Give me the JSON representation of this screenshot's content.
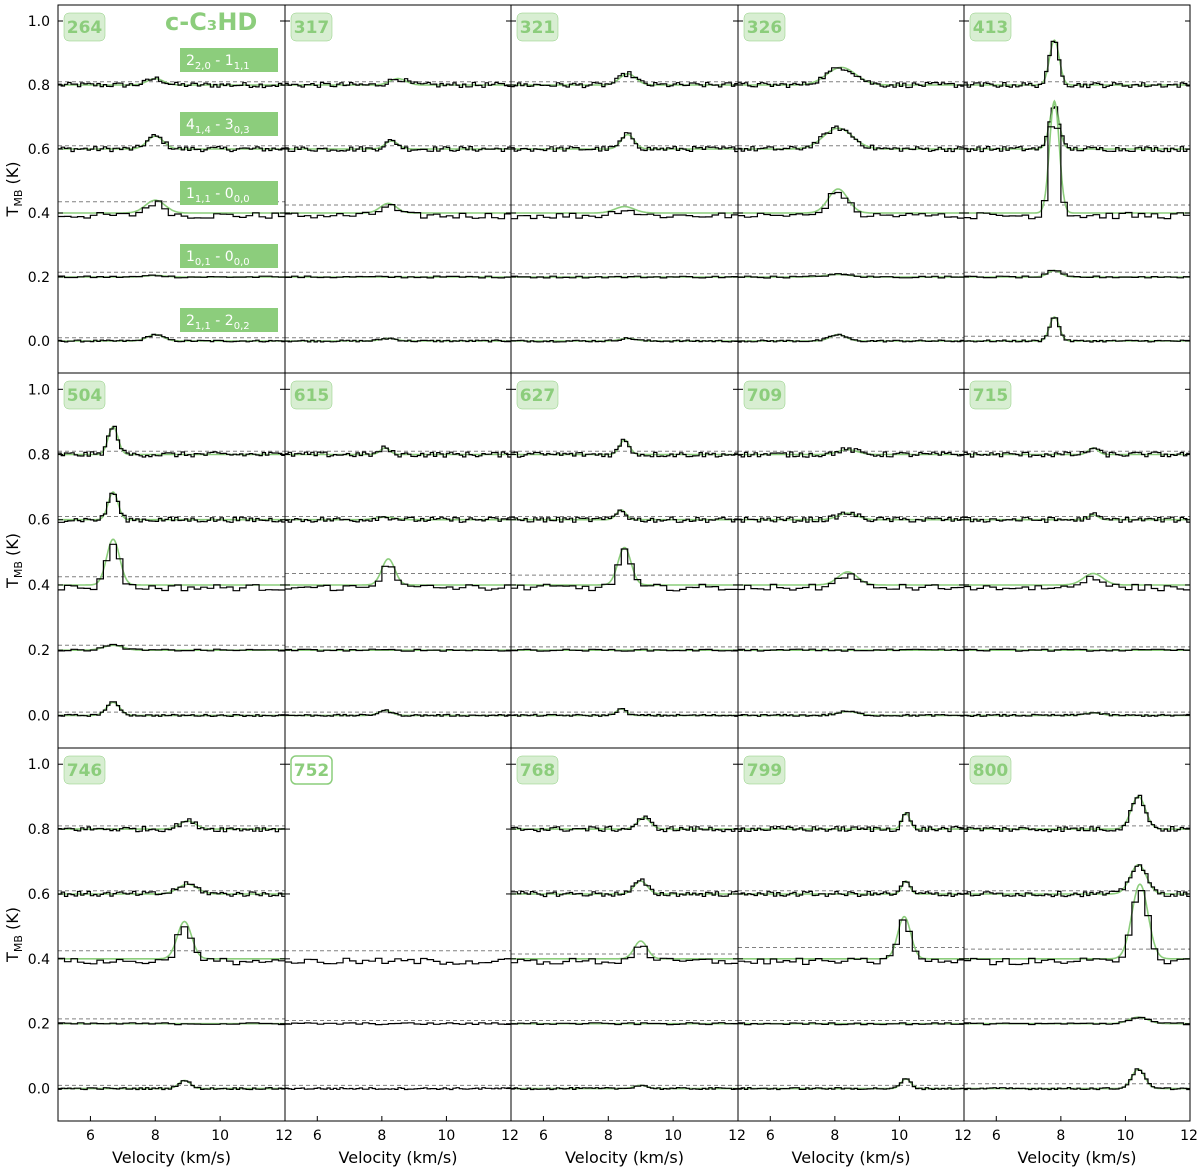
{
  "chart_data": {
    "type": "line",
    "species_label": "c-C₃HD",
    "xlabel": "Velocity (km/s)",
    "ylabel": "T",
    "ylabel_sub": "MB",
    "ylabel_unit": " (K)",
    "xlim": [
      5,
      12
    ],
    "ylim": [
      -0.1,
      1.05
    ],
    "xticks": [
      6,
      8,
      10,
      12
    ],
    "yticks": [
      0.0,
      0.2,
      0.4,
      0.6,
      0.8,
      1.0
    ],
    "y_tick_labels": [
      "0.0",
      "0.2",
      "0.4",
      "0.6",
      "0.8",
      "1.0"
    ],
    "x_tick_labels": [
      "6",
      "8",
      "10",
      "12"
    ],
    "colors": {
      "observed": "#000000",
      "model": "#8ccd7c",
      "threshold": "#808080",
      "badge_fill": "#d8eed2",
      "badge_text": "#8ccd7c"
    },
    "transitions": [
      {
        "base": "2",
        "sub": "2,0",
        "sep": " - ",
        "base2": "1",
        "sub2": "1,1",
        "offset": 0.8
      },
      {
        "base": "4",
        "sub": "1,4",
        "sep": " - ",
        "base2": "3",
        "sub2": "0,3",
        "offset": 0.6
      },
      {
        "base": "1",
        "sub": "1,1",
        "sep": " - ",
        "base2": "0",
        "sub2": "0,0",
        "offset": 0.4
      },
      {
        "base": "1",
        "sub": "0,1",
        "sep": " - ",
        "base2": "0",
        "sub2": "0,0",
        "offset": 0.2
      },
      {
        "base": "2",
        "sub": "1,1",
        "sep": " - ",
        "base2": "2",
        "sub2": "0,2",
        "offset": 0.0
      }
    ],
    "panels": [
      {
        "id": "264",
        "filled": true,
        "lines": [
          {
            "peak": 0.02,
            "vel": 8.0,
            "w": 0.25,
            "thr": 0.81,
            "off": 0.8
          },
          {
            "peak": 0.04,
            "vel": 8.0,
            "w": 0.25,
            "thr": 0.61,
            "off": 0.6
          },
          {
            "peak": 0.04,
            "vel": 8.0,
            "w": 0.3,
            "thr": 0.435,
            "off": 0.4
          },
          {
            "peak": 0.005,
            "vel": 8.0,
            "w": 0.3,
            "thr": 0.215,
            "off": 0.2
          },
          {
            "peak": 0.02,
            "vel": 8.0,
            "w": 0.25,
            "thr": 0.01,
            "off": 0.0
          }
        ]
      },
      {
        "id": "317",
        "filled": true,
        "lines": [
          {
            "peak": 0.02,
            "vel": 8.5,
            "w": 0.25,
            "thr": 0.81,
            "off": 0.8
          },
          {
            "peak": 0.025,
            "vel": 8.3,
            "w": 0.2,
            "thr": 0.61,
            "off": 0.6
          },
          {
            "peak": 0.03,
            "vel": 8.2,
            "w": 0.25,
            "thr": 0.425,
            "off": 0.4
          },
          {
            "peak": 0.0,
            "vel": 8.2,
            "w": 0.3,
            "thr": 0.215,
            "off": 0.2
          },
          {
            "peak": 0.008,
            "vel": 8.2,
            "w": 0.25,
            "thr": 0.01,
            "off": 0.0
          }
        ]
      },
      {
        "id": "321",
        "filled": true,
        "lines": [
          {
            "peak": 0.035,
            "vel": 8.6,
            "w": 0.25,
            "thr": 0.81,
            "off": 0.8
          },
          {
            "peak": 0.045,
            "vel": 8.6,
            "w": 0.2,
            "thr": 0.61,
            "off": 0.6
          },
          {
            "peak": 0.02,
            "vel": 8.5,
            "w": 0.3,
            "thr": 0.425,
            "off": 0.4
          },
          {
            "peak": 0.0,
            "vel": 8.5,
            "w": 0.3,
            "thr": 0.21,
            "off": 0.2
          },
          {
            "peak": 0.008,
            "vel": 8.6,
            "w": 0.25,
            "thr": 0.01,
            "off": 0.0
          }
        ]
      },
      {
        "id": "326",
        "filled": true,
        "lines": [
          {
            "peak": 0.055,
            "vel": 8.2,
            "w": 0.45,
            "thr": 0.81,
            "off": 0.8
          },
          {
            "peak": 0.065,
            "vel": 8.1,
            "w": 0.45,
            "thr": 0.61,
            "off": 0.6
          },
          {
            "peak": 0.075,
            "vel": 8.1,
            "w": 0.3,
            "thr": 0.425,
            "off": 0.4
          },
          {
            "peak": 0.008,
            "vel": 8.1,
            "w": 0.4,
            "thr": 0.21,
            "off": 0.2
          },
          {
            "peak": 0.02,
            "vel": 8.1,
            "w": 0.25,
            "thr": 0.01,
            "off": 0.0
          }
        ]
      },
      {
        "id": "413",
        "filled": true,
        "lines": [
          {
            "peak": 0.14,
            "vel": 7.8,
            "w": 0.15,
            "thr": 0.81,
            "off": 0.8
          },
          {
            "peak": 0.14,
            "vel": 7.8,
            "w": 0.15,
            "thr": 0.61,
            "off": 0.6
          },
          {
            "peak": 0.35,
            "vel": 7.8,
            "w": 0.15,
            "thr": 0.425,
            "off": 0.4
          },
          {
            "peak": 0.02,
            "vel": 7.8,
            "w": 0.2,
            "thr": 0.215,
            "off": 0.2
          },
          {
            "peak": 0.075,
            "vel": 7.8,
            "w": 0.15,
            "thr": 0.015,
            "off": 0.0
          }
        ]
      },
      {
        "id": "504",
        "filled": true,
        "lines": [
          {
            "peak": 0.085,
            "vel": 6.7,
            "w": 0.15,
            "thr": 0.81,
            "off": 0.8
          },
          {
            "peak": 0.085,
            "vel": 6.7,
            "w": 0.15,
            "thr": 0.61,
            "off": 0.6
          },
          {
            "peak": 0.14,
            "vel": 6.7,
            "w": 0.2,
            "thr": 0.425,
            "off": 0.4
          },
          {
            "peak": 0.015,
            "vel": 6.7,
            "w": 0.3,
            "thr": 0.215,
            "off": 0.2
          },
          {
            "peak": 0.04,
            "vel": 6.7,
            "w": 0.2,
            "thr": 0.01,
            "off": 0.0
          }
        ]
      },
      {
        "id": "615",
        "filled": true,
        "lines": [
          {
            "peak": 0.02,
            "vel": 8.1,
            "w": 0.15,
            "thr": 0.81,
            "off": 0.8
          },
          {
            "peak": 0.008,
            "vel": 8.1,
            "w": 0.3,
            "thr": 0.61,
            "off": 0.6
          },
          {
            "peak": 0.08,
            "vel": 8.2,
            "w": 0.2,
            "thr": 0.435,
            "off": 0.4
          },
          {
            "peak": 0.0,
            "vel": 8.2,
            "w": 0.3,
            "thr": 0.21,
            "off": 0.2
          },
          {
            "peak": 0.015,
            "vel": 8.1,
            "w": 0.2,
            "thr": 0.01,
            "off": 0.0
          }
        ]
      },
      {
        "id": "627",
        "filled": true,
        "lines": [
          {
            "peak": 0.045,
            "vel": 8.5,
            "w": 0.15,
            "thr": 0.81,
            "off": 0.8
          },
          {
            "peak": 0.03,
            "vel": 8.4,
            "w": 0.15,
            "thr": 0.61,
            "off": 0.6
          },
          {
            "peak": 0.115,
            "vel": 8.5,
            "w": 0.2,
            "thr": 0.43,
            "off": 0.4
          },
          {
            "peak": 0.0,
            "vel": 8.5,
            "w": 0.3,
            "thr": 0.21,
            "off": 0.2
          },
          {
            "peak": 0.02,
            "vel": 8.4,
            "w": 0.15,
            "thr": 0.01,
            "off": 0.0
          }
        ]
      },
      {
        "id": "709",
        "filled": true,
        "lines": [
          {
            "peak": 0.015,
            "vel": 8.4,
            "w": 0.3,
            "thr": 0.81,
            "off": 0.8
          },
          {
            "peak": 0.02,
            "vel": 8.4,
            "w": 0.3,
            "thr": 0.61,
            "off": 0.6
          },
          {
            "peak": 0.04,
            "vel": 8.4,
            "w": 0.3,
            "thr": 0.435,
            "off": 0.4
          },
          {
            "peak": 0.0,
            "vel": 8.4,
            "w": 0.3,
            "thr": 0.21,
            "off": 0.2
          },
          {
            "peak": 0.012,
            "vel": 8.4,
            "w": 0.3,
            "thr": 0.01,
            "off": 0.0
          }
        ]
      },
      {
        "id": "715",
        "filled": true,
        "lines": [
          {
            "peak": 0.02,
            "vel": 9.0,
            "w": 0.15,
            "thr": 0.81,
            "off": 0.8
          },
          {
            "peak": 0.015,
            "vel": 9.0,
            "w": 0.15,
            "thr": 0.61,
            "off": 0.6
          },
          {
            "peak": 0.035,
            "vel": 9.0,
            "w": 0.3,
            "thr": 0.435,
            "off": 0.4
          },
          {
            "peak": 0.0,
            "vel": 9.0,
            "w": 0.3,
            "thr": 0.21,
            "off": 0.2
          },
          {
            "peak": 0.008,
            "vel": 9.0,
            "w": 0.25,
            "thr": 0.01,
            "off": 0.0
          }
        ]
      },
      {
        "id": "746",
        "filled": true,
        "lines": [
          {
            "peak": 0.025,
            "vel": 9.0,
            "w": 0.25,
            "thr": 0.81,
            "off": 0.8
          },
          {
            "peak": 0.03,
            "vel": 9.0,
            "w": 0.3,
            "thr": 0.61,
            "off": 0.6
          },
          {
            "peak": 0.115,
            "vel": 8.9,
            "w": 0.22,
            "thr": 0.425,
            "off": 0.4
          },
          {
            "peak": 0.0,
            "vel": 9.0,
            "w": 0.3,
            "thr": 0.215,
            "off": 0.2
          },
          {
            "peak": 0.025,
            "vel": 8.9,
            "w": 0.18,
            "thr": 0.01,
            "off": 0.0
          }
        ]
      },
      {
        "id": "752",
        "filled": false,
        "lines": [
          {
            "peak": 0.0,
            "vel": 9.0,
            "w": 0.3,
            "thr": 0.425,
            "off": 0.4,
            "slot": 2
          },
          {
            "peak": 0.0,
            "vel": 9.0,
            "w": 0.3,
            "thr": 0.21,
            "off": 0.2,
            "slot": 3
          },
          {
            "peak": 0.0,
            "vel": 9.0,
            "w": 0.3,
            "thr": 0.01,
            "off": 0.0,
            "slot": 4
          }
        ]
      },
      {
        "id": "768",
        "filled": true,
        "lines": [
          {
            "peak": 0.035,
            "vel": 9.1,
            "w": 0.2,
            "thr": 0.81,
            "off": 0.8
          },
          {
            "peak": 0.04,
            "vel": 9.0,
            "w": 0.2,
            "thr": 0.61,
            "off": 0.6
          },
          {
            "peak": 0.055,
            "vel": 9.0,
            "w": 0.2,
            "thr": 0.415,
            "off": 0.4
          },
          {
            "peak": 0.0,
            "vel": 9.0,
            "w": 0.3,
            "thr": 0.21,
            "off": 0.2
          },
          {
            "peak": 0.01,
            "vel": 9.0,
            "w": 0.2,
            "thr": 0.01,
            "off": 0.0
          }
        ]
      },
      {
        "id": "799",
        "filled": true,
        "lines": [
          {
            "peak": 0.05,
            "vel": 10.2,
            "w": 0.12,
            "thr": 0.81,
            "off": 0.8
          },
          {
            "peak": 0.04,
            "vel": 10.2,
            "w": 0.12,
            "thr": 0.61,
            "off": 0.6
          },
          {
            "peak": 0.13,
            "vel": 10.15,
            "w": 0.2,
            "thr": 0.435,
            "off": 0.4
          },
          {
            "peak": 0.0,
            "vel": 10.2,
            "w": 0.3,
            "thr": 0.21,
            "off": 0.2
          },
          {
            "peak": 0.03,
            "vel": 10.2,
            "w": 0.15,
            "thr": 0.01,
            "off": 0.0
          }
        ]
      },
      {
        "id": "800",
        "filled": true,
        "lines": [
          {
            "peak": 0.1,
            "vel": 10.4,
            "w": 0.22,
            "thr": 0.81,
            "off": 0.8
          },
          {
            "peak": 0.09,
            "vel": 10.4,
            "w": 0.25,
            "thr": 0.61,
            "off": 0.6
          },
          {
            "peak": 0.23,
            "vel": 10.45,
            "w": 0.25,
            "thr": 0.43,
            "off": 0.4
          },
          {
            "peak": 0.02,
            "vel": 10.4,
            "w": 0.3,
            "thr": 0.215,
            "off": 0.2
          },
          {
            "peak": 0.06,
            "vel": 10.4,
            "w": 0.2,
            "thr": 0.015,
            "off": 0.0
          }
        ]
      }
    ]
  }
}
